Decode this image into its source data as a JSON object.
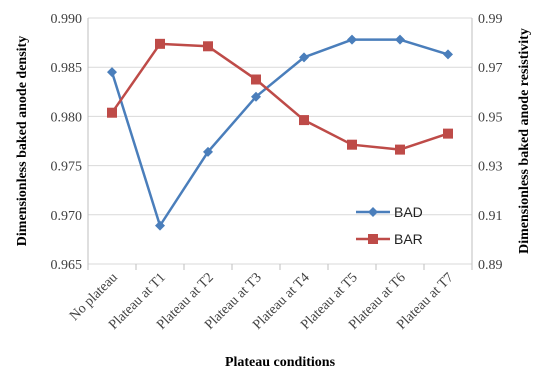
{
  "chart_data": {
    "type": "line",
    "categories": [
      "No plateau",
      "Plateau at T1",
      "Plateau at T2",
      "Plateau at T3",
      "Plateau at T4",
      "Plateau at T5",
      "Plateau at T6",
      "Plateau at T7"
    ],
    "xlabel": "Plateau conditions",
    "ylabel": "Dimensionless baked anode density",
    "y2label": "Dimensionless baked anode resistivity",
    "ylim": [
      0.965,
      0.99
    ],
    "yticks": [
      "0.965",
      "0.970",
      "0.975",
      "0.980",
      "0.985",
      "0.990"
    ],
    "y2lim": [
      0.89,
      0.99
    ],
    "y2ticks": [
      "0.89",
      "0.91",
      "0.93",
      "0.95",
      "0.97",
      "0.99"
    ],
    "grid": true,
    "legend_position": "bottom-right",
    "series": [
      {
        "name": "BAD",
        "axis": "left",
        "color": "#4a7ebb",
        "marker": "diamond",
        "values": [
          0.9845,
          0.9689,
          0.9764,
          0.982,
          0.986,
          0.9878,
          0.9878,
          0.9863
        ]
      },
      {
        "name": "BAR",
        "axis": "right",
        "color": "#be4b48",
        "marker": "square",
        "values": [
          0.9515,
          0.9795,
          0.9785,
          0.965,
          0.9485,
          0.9385,
          0.9365,
          0.943
        ]
      }
    ]
  }
}
